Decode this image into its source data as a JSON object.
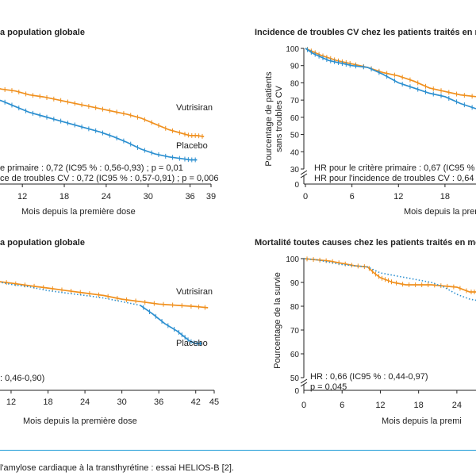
{
  "caption": "l'amylose cardiaque à la transthyrétine : essai HELIOS-B [2].",
  "colors": {
    "vutrisiran": "#f0901e",
    "placebo": "#2b8fd0",
    "axis": "#222222",
    "caption_rule": "#1a9ad6"
  },
  "chart_data": [
    {
      "type": "line",
      "title": "a population globale",
      "xlabel": "Mois depuis la première dose",
      "ylabel": "",
      "x_ticks": [
        12,
        18,
        24,
        30,
        36,
        39
      ],
      "x_tick_labels": [
        "12",
        "18",
        "24",
        "30",
        "36",
        "39"
      ],
      "y_ticks": [],
      "labels": [
        "Vutrisiran",
        "Placebo"
      ],
      "annotations": [
        "e primaire : 0,72 (IC95 % : 0,56-0,93) ; p = 0,01",
        "ce de troubles CV : 0,72 (IC95 % : 0,57-0,91) ; p = 0,006"
      ],
      "series": [
        {
          "name": "Vutrisiran",
          "style": "solid",
          "x": [
            3,
            5,
            7,
            9,
            11,
            13,
            15,
            17,
            19,
            21,
            23,
            25,
            27,
            29,
            31,
            33,
            35,
            36,
            37,
            38
          ],
          "y": [
            84.5,
            83,
            80.5,
            79,
            78,
            76,
            75,
            73.5,
            72,
            70.5,
            69,
            67.5,
            66,
            64,
            61,
            58,
            56,
            55,
            55,
            54.5
          ]
        },
        {
          "name": "Placebo",
          "style": "solid",
          "x": [
            3,
            5,
            7,
            9,
            11,
            13,
            15,
            17,
            19,
            21,
            23,
            25,
            27,
            29,
            31,
            33,
            35,
            36,
            37
          ],
          "y": [
            79.5,
            77,
            75,
            73,
            70,
            67,
            65,
            63,
            61,
            59,
            57,
            54.5,
            51.5,
            48,
            45.5,
            44,
            43,
            42.5,
            42.5
          ]
        }
      ]
    },
    {
      "type": "line",
      "title": "Incidence de troubles CV chez les patients traités en m",
      "xlabel": "Mois depuis la premi",
      "ylabel": "Pourcentage de patients sans troubles CV",
      "x_ticks": [
        0,
        6,
        12,
        18
      ],
      "y_ticks": [
        30,
        40,
        50,
        60,
        70,
        80,
        90,
        100
      ],
      "annotations": [
        "HR pour le critère primaire : 0,67 (IC95 %",
        "HR pour l'incidence de troubles CV : 0,64"
      ],
      "series": [
        {
          "name": "Vutrisiran",
          "style": "solid",
          "x": [
            0,
            1,
            2,
            3,
            4,
            5,
            6,
            8,
            10,
            12,
            14,
            16,
            18,
            20,
            22
          ],
          "y": [
            100,
            98,
            96,
            94.5,
            93,
            92,
            91,
            89,
            86,
            84,
            81,
            77,
            75,
            73,
            72
          ]
        },
        {
          "name": "Placebo",
          "style": "solid",
          "x": [
            0,
            1,
            2,
            3,
            4,
            5,
            6,
            8,
            10,
            12,
            14,
            16,
            18,
            20,
            22
          ],
          "y": [
            100,
            97,
            95,
            93,
            92,
            91,
            90,
            89,
            85,
            80,
            77,
            74,
            72,
            68,
            65
          ]
        }
      ]
    },
    {
      "type": "line",
      "title": "a population globale",
      "xlabel": "Mois depuis la première dose",
      "ylabel": "",
      "x_ticks": [
        12,
        18,
        24,
        30,
        36,
        42,
        45
      ],
      "x_tick_labels": [
        "12",
        "18",
        "24",
        "30",
        "36",
        "42",
        "45"
      ],
      "y_ticks": [],
      "labels": [
        "Vutrisiran",
        "Placebo"
      ],
      "annotations": [
        ": 0,46-0,90)"
      ],
      "series": [
        {
          "name": "Vutrisiran",
          "style": "solid",
          "x": [
            7,
            9,
            12,
            15,
            18,
            21,
            24,
            27,
            30,
            33,
            36,
            39,
            42,
            44
          ],
          "y": [
            98,
            96.5,
            95.5,
            94.5,
            93.5,
            92.5,
            91.5,
            90.5,
            89,
            88,
            87,
            86.5,
            86,
            85.5
          ]
        },
        {
          "name": "Placebo",
          "style": "dotted",
          "x": [
            7,
            9,
            12,
            15,
            18,
            21,
            24,
            27,
            30,
            33
          ],
          "y": [
            98,
            96.5,
            95,
            94,
            92.5,
            91.5,
            90.5,
            89.5,
            88,
            86.5
          ]
        },
        {
          "name": "Placebo",
          "style": "solid",
          "x": [
            33,
            35,
            37,
            39,
            40,
            41,
            42,
            43
          ],
          "y": [
            86.5,
            83,
            79,
            76,
            74,
            72,
            71,
            71
          ]
        }
      ]
    },
    {
      "type": "line",
      "title": "Mortalité toutes causes chez les patients traités en mo",
      "xlabel": "Mois depuis la premi",
      "ylabel": "Pourcentage de la survie",
      "x_ticks": [
        0,
        6,
        12,
        18,
        24
      ],
      "y_ticks": [
        50,
        60,
        70,
        80,
        90,
        100
      ],
      "annotations": [
        "HR : 0,66 (IC95 % : 0,44-0,97)",
        "p = 0,045"
      ],
      "series": [
        {
          "name": "Vutrisiran",
          "style": "solid",
          "x": [
            0,
            2,
            4,
            6,
            8,
            10,
            11,
            12,
            13,
            14,
            16,
            18,
            20,
            22,
            24,
            26,
            27
          ],
          "y": [
            100,
            99.5,
            99,
            98,
            97,
            96.5,
            94,
            92,
            91,
            90,
            89,
            89,
            89,
            88.5,
            88,
            86,
            86
          ]
        },
        {
          "name": "Placebo",
          "style": "dotted",
          "x": [
            0,
            2,
            4,
            6,
            8,
            10,
            12,
            14,
            16,
            18,
            20,
            22,
            24,
            26,
            27
          ],
          "y": [
            100,
            99.5,
            98.5,
            97.5,
            97,
            96.5,
            94,
            93,
            92,
            91,
            90,
            88,
            85,
            83,
            82.5
          ]
        }
      ]
    }
  ]
}
